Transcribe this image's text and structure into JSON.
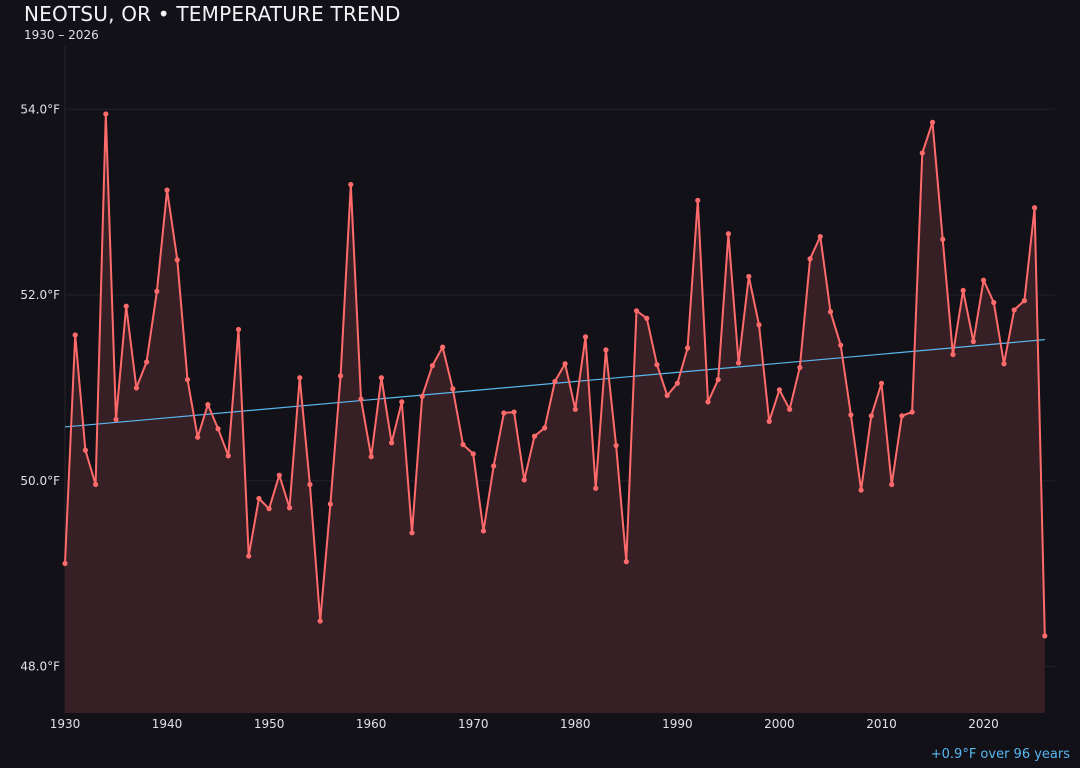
{
  "chart_data": {
    "type": "line",
    "title": "NEOTSU, OR • TEMPERATURE TREND",
    "subtitle": "1930 – 2026",
    "xlabel": "",
    "ylabel": "",
    "xlim": [
      1930,
      2027
    ],
    "ylim": [
      47.5,
      54.8
    ],
    "x_ticks": [
      1930,
      1940,
      1950,
      1960,
      1970,
      1980,
      1990,
      2000,
      2010,
      2020
    ],
    "y_ticks": [
      48.0,
      50.0,
      52.0,
      54.0
    ],
    "y_tick_labels": [
      "48.0°F",
      "50.0°F",
      "52.0°F",
      "54.0°F"
    ],
    "grid": "horizontal",
    "area_fill": true,
    "colors": {
      "series": "#ff6b6b",
      "fill": "#361f25",
      "trend": "#5ab8f0",
      "background": "#121117"
    },
    "x": [
      1930,
      1931,
      1932,
      1933,
      1934,
      1935,
      1936,
      1937,
      1938,
      1939,
      1940,
      1941,
      1942,
      1943,
      1944,
      1945,
      1946,
      1947,
      1948,
      1949,
      1950,
      1951,
      1952,
      1953,
      1954,
      1955,
      1956,
      1957,
      1958,
      1959,
      1960,
      1961,
      1962,
      1963,
      1964,
      1965,
      1966,
      1967,
      1968,
      1969,
      1970,
      1971,
      1972,
      1973,
      1974,
      1975,
      1976,
      1977,
      1978,
      1979,
      1980,
      1981,
      1982,
      1983,
      1984,
      1985,
      1986,
      1987,
      1988,
      1989,
      1990,
      1991,
      1992,
      1993,
      1994,
      1995,
      1996,
      1997,
      1998,
      1999,
      2000,
      2001,
      2002,
      2003,
      2004,
      2005,
      2006,
      2007,
      2008,
      2009,
      2010,
      2011,
      2012,
      2013,
      2014,
      2015,
      2016,
      2017,
      2018,
      2019,
      2020,
      2021,
      2022,
      2023,
      2024,
      2025,
      2026
    ],
    "series": [
      {
        "values": [
          49.11,
          51.57,
          50.33,
          49.96,
          53.95,
          50.66,
          51.88,
          51.0,
          51.28,
          52.04,
          53.13,
          52.38,
          51.09,
          50.47,
          50.82,
          50.56,
          50.27,
          51.63,
          49.19,
          49.81,
          49.7,
          50.06,
          49.71,
          51.11,
          49.96,
          48.49,
          49.75,
          51.13,
          53.19,
          50.88,
          50.26,
          51.11,
          50.41,
          50.85,
          49.44,
          50.91,
          51.24,
          51.44,
          50.99,
          50.39,
          50.29,
          49.46,
          50.16,
          50.73,
          50.74,
          50.01,
          50.48,
          50.57,
          51.07,
          51.26,
          50.77,
          51.55,
          49.92,
          51.41,
          50.38,
          49.13,
          51.83,
          51.75,
          51.25,
          50.92,
          51.05,
          51.43,
          53.02,
          50.85,
          51.09,
          52.66,
          51.27,
          52.2,
          51.68,
          50.64,
          50.98,
          50.77,
          51.22,
          52.39,
          52.63,
          51.82,
          51.46,
          50.71,
          49.9,
          50.7,
          51.05,
          49.96,
          50.7,
          50.74,
          53.53,
          53.86,
          52.6,
          51.36,
          52.05,
          51.5,
          52.16,
          51.92,
          51.26,
          51.84,
          51.94,
          52.94,
          48.33
        ]
      }
    ],
    "trend": {
      "x": [
        1930,
        2026
      ],
      "y": [
        50.58,
        51.52
      ]
    },
    "annotation": "+0.9°F over 96 years"
  }
}
